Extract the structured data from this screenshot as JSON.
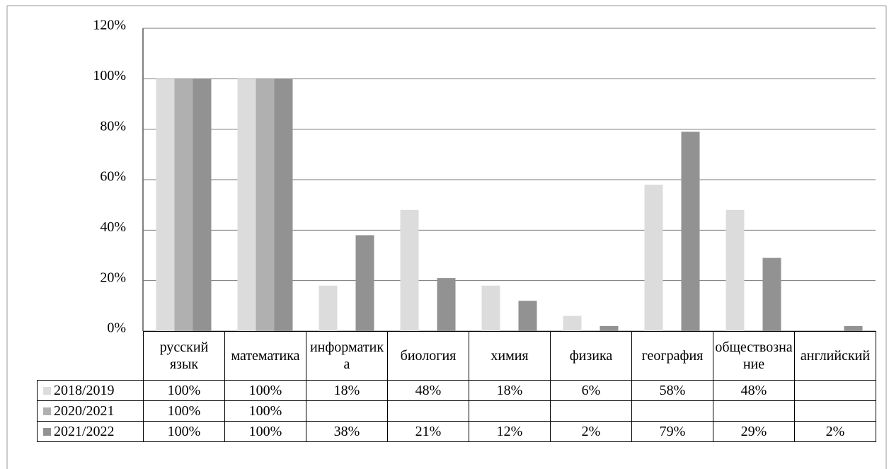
{
  "chart_data": {
    "type": "bar",
    "categories": [
      "русский язык",
      "математика",
      "информатика",
      "биология",
      "химия",
      "физика",
      "география",
      "обществознание",
      "английский"
    ],
    "series": [
      {
        "name": "2018/2019",
        "color": "#dcdcdc",
        "values": [
          100,
          100,
          18,
          48,
          18,
          6,
          58,
          48,
          null
        ],
        "value_labels": [
          "100%",
          "100%",
          "18%",
          "48%",
          "18%",
          "6%",
          "58%",
          "48%",
          null
        ]
      },
      {
        "name": "2020/2021",
        "color": "#b0b0b0",
        "values": [
          100,
          100,
          null,
          null,
          null,
          null,
          null,
          null,
          null
        ],
        "value_labels": [
          "100%",
          "100%",
          null,
          null,
          null,
          null,
          null,
          null,
          null
        ]
      },
      {
        "name": "2021/2022",
        "color": "#929292",
        "values": [
          100,
          100,
          38,
          21,
          12,
          2,
          79,
          29,
          2
        ],
        "value_labels": [
          "100%",
          "100%",
          "38%",
          "21%",
          "12%",
          "2%",
          "79%",
          "29%",
          "2%"
        ]
      }
    ],
    "ylim": [
      0,
      120
    ],
    "yticks": [
      {
        "value": 0,
        "label": "0%"
      },
      {
        "value": 20,
        "label": "20%"
      },
      {
        "value": 40,
        "label": "40%"
      },
      {
        "value": 60,
        "label": "60%"
      },
      {
        "value": 80,
        "label": "80%"
      },
      {
        "value": 100,
        "label": "100%"
      },
      {
        "value": 120,
        "label": "120%"
      }
    ],
    "grid": true
  }
}
